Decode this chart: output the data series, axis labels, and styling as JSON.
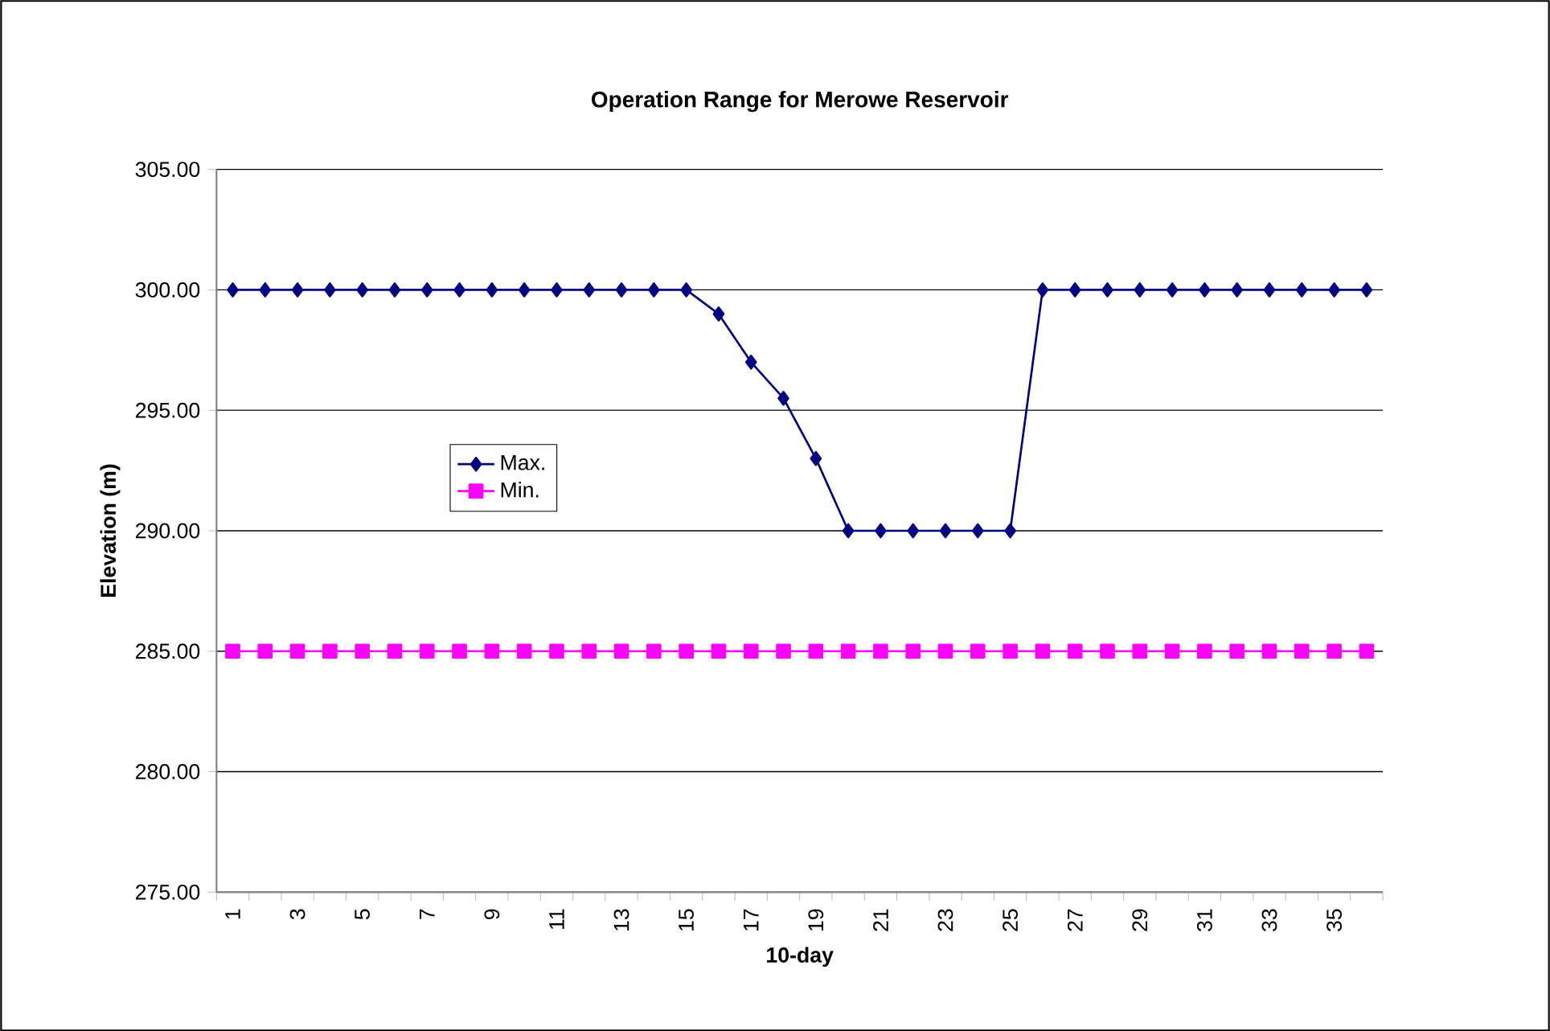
{
  "chart_data": {
    "type": "line",
    "title": "Operation Range for Merowe Reservoir",
    "xlabel": "10-day",
    "ylabel": "Elevation (m)",
    "categories": [
      "1",
      null,
      "3",
      null,
      "5",
      null,
      "7",
      null,
      "9",
      null,
      "11",
      null,
      "13",
      null,
      "15",
      null,
      "17",
      null,
      "19",
      null,
      "21",
      null,
      "23",
      null,
      "25",
      null,
      "27",
      null,
      "29",
      null,
      "31",
      null,
      "33",
      null,
      "35",
      null
    ],
    "series": [
      {
        "name": "Max.",
        "color": "#000080",
        "marker": "diamond",
        "values": [
          300,
          300,
          300,
          300,
          300,
          300,
          300,
          300,
          300,
          300,
          300,
          300,
          300,
          300,
          300,
          299,
          297,
          295.5,
          293,
          290,
          290,
          290,
          290,
          290,
          290,
          300,
          300,
          300,
          300,
          300,
          300,
          300,
          300,
          300,
          300,
          300
        ]
      },
      {
        "name": "Min.",
        "color": "#ff00ff",
        "marker": "square",
        "values": [
          285,
          285,
          285,
          285,
          285,
          285,
          285,
          285,
          285,
          285,
          285,
          285,
          285,
          285,
          285,
          285,
          285,
          285,
          285,
          285,
          285,
          285,
          285,
          285,
          285,
          285,
          285,
          285,
          285,
          285,
          285,
          285,
          285,
          285,
          285,
          285
        ]
      }
    ],
    "ylim": [
      275,
      305
    ],
    "yticks": [
      {
        "value": 275,
        "label": "275.00"
      },
      {
        "value": 280,
        "label": "280.00"
      },
      {
        "value": 285,
        "label": "285.00"
      },
      {
        "value": 290,
        "label": "290.00"
      },
      {
        "value": 295,
        "label": "295.00"
      },
      {
        "value": 300,
        "label": "300.00"
      },
      {
        "value": 305,
        "label": "305.00"
      }
    ],
    "grid": "y",
    "legend": "left",
    "line_style": "solid"
  }
}
